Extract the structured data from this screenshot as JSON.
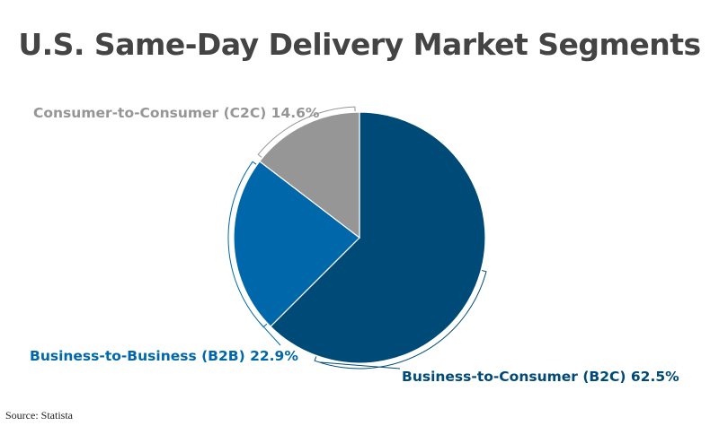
{
  "chart_data": {
    "type": "pie",
    "title": "U.S. Same-Day Delivery Market Segments",
    "slices": [
      {
        "name": "Business-to-Consumer (B2C)",
        "value": 62.5,
        "label": "Business-to-Consumer (B2C) 62.5%",
        "color": "#004a77"
      },
      {
        "name": "Business-to-Business (B2B)",
        "value": 22.9,
        "label": "Business-to-Business (B2B) 22.9%",
        "color": "#0068aa"
      },
      {
        "name": "Consumer-to-Consumer (C2C)",
        "value": 14.6,
        "label": "Consumer-to-Consumer (C2C) 14.6%",
        "color": "#969696"
      }
    ],
    "legend": "none"
  },
  "source": "Source: Statista"
}
